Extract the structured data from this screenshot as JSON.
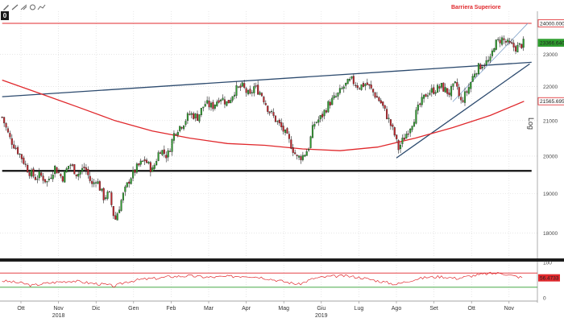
{
  "toolbar": {
    "zoom_label": "0"
  },
  "icons": [
    "pencil-icon",
    "draw-tool-icon",
    "draw-tool-icon",
    "draw-tool-icon",
    "draw-tool-icon"
  ],
  "annotation": {
    "barrier_label": "Barriera Superiore"
  },
  "axis": {
    "scale_label": "Log"
  },
  "chart_data": {
    "type": "candlestick",
    "y_scale": "log",
    "ylim": [
      17400,
      24400
    ],
    "y_ticks": [
      {
        "value": 18000,
        "label": "18000"
      },
      {
        "value": 19000,
        "label": "19000"
      },
      {
        "value": 20000,
        "label": "20000"
      },
      {
        "value": 21000,
        "label": "21000"
      },
      {
        "value": 22000,
        "label": "22000"
      },
      {
        "value": 23000,
        "label": "23000"
      }
    ],
    "price_tags": [
      {
        "value": 24000.0,
        "label": "24000.0000",
        "color": "#e0282c",
        "fill": "#ffffff"
      },
      {
        "value": 23366.6406,
        "label": "23366.6406",
        "color": "#2e9e2e",
        "fill": "#2e9e2e"
      },
      {
        "value": 21565.6953,
        "label": "21565.6953",
        "color": "#e0282c",
        "fill": "#ffffff"
      }
    ],
    "x_months": [
      {
        "label": "Ott",
        "m": 0
      },
      {
        "label": "Nov",
        "m": 1
      },
      {
        "label": "Dic",
        "m": 2
      },
      {
        "label": "Gen",
        "m": 3
      },
      {
        "label": "Feb",
        "m": 4
      },
      {
        "label": "Mar",
        "m": 5
      },
      {
        "label": "Apr",
        "m": 6
      },
      {
        "label": "Mag",
        "m": 7
      },
      {
        "label": "Giu",
        "m": 8
      },
      {
        "label": "Lug",
        "m": 9
      },
      {
        "label": "Ago",
        "m": 10
      },
      {
        "label": "Set",
        "m": 11
      },
      {
        "label": "Ott",
        "m": 12
      },
      {
        "label": "Nov",
        "m": 13
      }
    ],
    "x_years": [
      {
        "label": "2018",
        "m": 1
      },
      {
        "label": "2019",
        "m": 8
      }
    ],
    "close_path": [
      [
        -0.5,
        21100
      ],
      [
        -0.3,
        20500
      ],
      [
        0.0,
        20000
      ],
      [
        0.2,
        19600
      ],
      [
        0.4,
        19400
      ],
      [
        0.5,
        19500
      ],
      [
        0.7,
        19300
      ],
      [
        0.9,
        19700
      ],
      [
        1.1,
        19400
      ],
      [
        1.3,
        19800
      ],
      [
        1.5,
        19500
      ],
      [
        1.7,
        19700
      ],
      [
        1.9,
        19200
      ],
      [
        2.0,
        19400
      ],
      [
        2.2,
        18900
      ],
      [
        2.35,
        19000
      ],
      [
        2.5,
        18300
      ],
      [
        2.6,
        18600
      ],
      [
        2.7,
        18900
      ],
      [
        2.9,
        19400
      ],
      [
        3.1,
        19700
      ],
      [
        3.3,
        19900
      ],
      [
        3.5,
        19600
      ],
      [
        3.7,
        20200
      ],
      [
        3.9,
        20000
      ],
      [
        4.1,
        20700
      ],
      [
        4.3,
        20900
      ],
      [
        4.5,
        21200
      ],
      [
        4.7,
        21100
      ],
      [
        4.9,
        21500
      ],
      [
        5.1,
        21400
      ],
      [
        5.3,
        21700
      ],
      [
        5.5,
        21500
      ],
      [
        5.7,
        21900
      ],
      [
        5.9,
        22000
      ],
      [
        6.1,
        21700
      ],
      [
        6.2,
        22000
      ],
      [
        6.4,
        21800
      ],
      [
        6.6,
        21300
      ],
      [
        6.8,
        21000
      ],
      [
        7.0,
        20700
      ],
      [
        7.2,
        20300
      ],
      [
        7.35,
        19950
      ],
      [
        7.5,
        20000
      ],
      [
        7.65,
        20200
      ],
      [
        7.8,
        20900
      ],
      [
        8.0,
        21100
      ],
      [
        8.2,
        21500
      ],
      [
        8.4,
        21700
      ],
      [
        8.6,
        22000
      ],
      [
        8.8,
        22200
      ],
      [
        9.0,
        22000
      ],
      [
        9.2,
        22100
      ],
      [
        9.4,
        21800
      ],
      [
        9.6,
        21500
      ],
      [
        9.8,
        21000
      ],
      [
        9.95,
        20600
      ],
      [
        10.05,
        20200
      ],
      [
        10.2,
        20500
      ],
      [
        10.4,
        20900
      ],
      [
        10.6,
        21400
      ],
      [
        10.8,
        21800
      ],
      [
        11.0,
        21900
      ],
      [
        11.2,
        22000
      ],
      [
        11.4,
        21800
      ],
      [
        11.6,
        22100
      ],
      [
        11.7,
        21500
      ],
      [
        11.9,
        21900
      ],
      [
        12.1,
        22500
      ],
      [
        12.3,
        22700
      ],
      [
        12.5,
        22800
      ],
      [
        12.6,
        23300
      ],
      [
        12.8,
        23500
      ],
      [
        13.0,
        23300
      ],
      [
        13.2,
        23200
      ],
      [
        13.4,
        23366.6406
      ]
    ],
    "ma_path": [
      [
        -0.5,
        22200
      ],
      [
        0.5,
        21800
      ],
      [
        1.5,
        21400
      ],
      [
        2.5,
        21000
      ],
      [
        3.5,
        20700
      ],
      [
        4.5,
        20500
      ],
      [
        5.5,
        20350
      ],
      [
        6.5,
        20300
      ],
      [
        7.5,
        20200
      ],
      [
        8.5,
        20150
      ],
      [
        9.5,
        20250
      ],
      [
        10.5,
        20500
      ],
      [
        11.5,
        20800
      ],
      [
        12.5,
        21150
      ],
      [
        13.4,
        21565.6953
      ]
    ],
    "lines": [
      {
        "name": "resistance",
        "color": "#e0282c",
        "points": [
          [
            -0.5,
            24000
          ],
          [
            13.6,
            24000
          ]
        ]
      },
      {
        "name": "support",
        "color": "#111111",
        "points": [
          [
            -0.5,
            19600
          ],
          [
            13.6,
            19600
          ]
        ]
      },
      {
        "name": "trendline",
        "color": "#2c4a6e",
        "points": [
          [
            -0.5,
            21700
          ],
          [
            13.6,
            22750
          ]
        ]
      },
      {
        "name": "uptrend",
        "color": "#2c4a6e",
        "points": [
          [
            10.0,
            19950
          ],
          [
            13.55,
            22700
          ]
        ]
      },
      {
        "name": "channel",
        "color": "#7da0c8",
        "points": [
          [
            11.5,
            21550
          ],
          [
            13.5,
            24000
          ]
        ]
      }
    ],
    "rsi": {
      "ylim": [
        0,
        100
      ],
      "ticks": [
        {
          "value": 100,
          "label": "100"
        },
        {
          "value": 0,
          "label": "0"
        }
      ],
      "overbought": 70,
      "oversold": 30,
      "last_value": 56.4733,
      "last_label": "56.4733",
      "path": [
        [
          -0.5,
          48
        ],
        [
          0.0,
          42
        ],
        [
          0.3,
          35
        ],
        [
          0.6,
          40
        ],
        [
          1.0,
          45
        ],
        [
          1.4,
          48
        ],
        [
          1.8,
          42
        ],
        [
          2.2,
          38
        ],
        [
          2.5,
          33
        ],
        [
          2.8,
          45
        ],
        [
          3.2,
          52
        ],
        [
          3.6,
          55
        ],
        [
          4.0,
          60
        ],
        [
          4.5,
          62
        ],
        [
          5.0,
          58
        ],
        [
          5.5,
          60
        ],
        [
          6.0,
          62
        ],
        [
          6.4,
          58
        ],
        [
          6.8,
          50
        ],
        [
          7.2,
          42
        ],
        [
          7.4,
          38
        ],
        [
          7.8,
          55
        ],
        [
          8.2,
          60
        ],
        [
          8.6,
          62
        ],
        [
          9.0,
          58
        ],
        [
          9.4,
          50
        ],
        [
          9.8,
          42
        ],
        [
          10.0,
          38
        ],
        [
          10.4,
          50
        ],
        [
          10.8,
          58
        ],
        [
          11.2,
          60
        ],
        [
          11.6,
          55
        ],
        [
          12.0,
          62
        ],
        [
          12.4,
          68
        ],
        [
          12.8,
          70
        ],
        [
          13.1,
          62
        ],
        [
          13.4,
          56.4733
        ]
      ]
    }
  }
}
